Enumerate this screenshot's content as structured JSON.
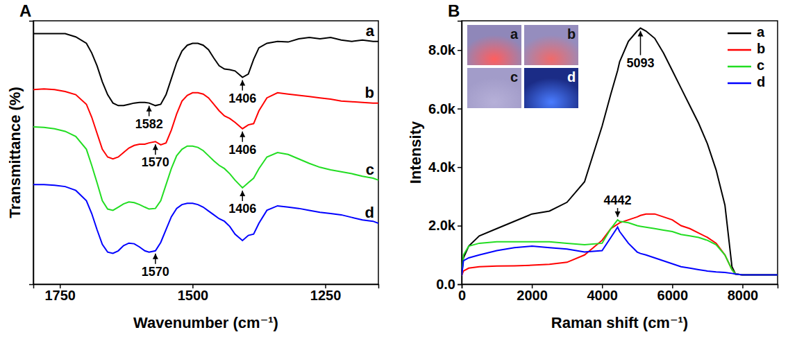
{
  "chart_data": [
    {
      "type": "line",
      "panel_label": "A",
      "x_label": "Wavenumber (cm⁻¹)",
      "y_label": "Transmittance (%)",
      "x": [
        1800,
        1780,
        1760,
        1740,
        1720,
        1700,
        1690,
        1680,
        1670,
        1660,
        1650,
        1640,
        1630,
        1620,
        1610,
        1600,
        1590,
        1582,
        1570,
        1560,
        1550,
        1540,
        1530,
        1520,
        1510,
        1500,
        1490,
        1480,
        1470,
        1460,
        1450,
        1440,
        1430,
        1420,
        1406,
        1395,
        1385,
        1375,
        1360,
        1340,
        1320,
        1300,
        1280,
        1260,
        1240,
        1220,
        1200,
        1180,
        1160,
        1150
      ],
      "xlim": [
        1800,
        1150
      ],
      "xticks": [
        1750,
        1500,
        1250
      ],
      "ylim": [
        0,
        410
      ],
      "tick_labels": "x",
      "series": [
        {
          "name": "a",
          "color": "#000000",
          "values": [
            390,
            390,
            390,
            390,
            385,
            375,
            360,
            340,
            315,
            295,
            282,
            278,
            278,
            280,
            282,
            283,
            283,
            282,
            278,
            280,
            295,
            320,
            345,
            363,
            372,
            375,
            375,
            372,
            365,
            352,
            340,
            335,
            334,
            332,
            322,
            327,
            350,
            368,
            375,
            378,
            377,
            382,
            384,
            382,
            384,
            380,
            378,
            380,
            378,
            378
          ],
          "annotations": [
            {
              "text": "1582",
              "x": 1582
            },
            {
              "text": "1406",
              "x": 1406
            }
          ]
        },
        {
          "name": "b",
          "color": "#ff0000",
          "values": [
            303,
            304,
            303,
            300,
            295,
            280,
            260,
            235,
            210,
            198,
            195,
            198,
            205,
            212,
            216,
            218,
            218,
            220,
            222,
            217,
            220,
            240,
            265,
            285,
            294,
            298,
            298,
            296,
            290,
            280,
            270,
            262,
            258,
            252,
            242,
            248,
            250,
            270,
            290,
            298,
            296,
            294,
            292,
            290,
            288,
            285,
            284,
            283,
            282,
            282
          ],
          "annotations": [
            {
              "text": "1570",
              "x": 1570
            },
            {
              "text": "1406",
              "x": 1406
            }
          ]
        },
        {
          "name": "c",
          "color": "#22dd22",
          "values": [
            245,
            244,
            242,
            238,
            230,
            210,
            185,
            158,
            130,
            117,
            115,
            120,
            125,
            128,
            127,
            124,
            120,
            117,
            118,
            130,
            155,
            180,
            200,
            210,
            215,
            215,
            213,
            208,
            200,
            192,
            185,
            180,
            172,
            162,
            150,
            158,
            165,
            180,
            198,
            205,
            202,
            195,
            188,
            182,
            178,
            175,
            172,
            168,
            165,
            162
          ],
          "annotations": [
            {
              "text": "1406",
              "x": 1406
            }
          ]
        },
        {
          "name": "d",
          "color": "#0000ff",
          "values": [
            155,
            155,
            154,
            152,
            146,
            130,
            110,
            85,
            62,
            50,
            48,
            52,
            60,
            64,
            63,
            58,
            52,
            50,
            52,
            65,
            85,
            105,
            118,
            124,
            126,
            126,
            124,
            120,
            114,
            108,
            102,
            98,
            90,
            78,
            68,
            76,
            78,
            95,
            115,
            122,
            120,
            118,
            115,
            112,
            110,
            108,
            104,
            100,
            98,
            95
          ],
          "annotations": [
            {
              "text": "1570",
              "x": 1570
            }
          ]
        }
      ]
    },
    {
      "type": "line",
      "panel_label": "B",
      "x_label": "Raman shift (cm⁻¹)",
      "y_label": "Intensity",
      "x": [
        0,
        50,
        200,
        500,
        1000,
        1500,
        2000,
        2500,
        3000,
        3500,
        4000,
        4250,
        4442,
        4500,
        4750,
        5000,
        5093,
        5250,
        5500,
        5750,
        6000,
        6250,
        6500,
        6750,
        7000,
        7250,
        7500,
        7700,
        7800,
        8000,
        8500,
        9000
      ],
      "xlim": [
        0,
        9000
      ],
      "xticks": [
        0,
        2000,
        4000,
        6000,
        8000
      ],
      "ylim": [
        0,
        9000
      ],
      "yticks": [
        {
          "value": 0,
          "label": "0.0"
        },
        {
          "value": 2000,
          "label": "2.0k"
        },
        {
          "value": 4000,
          "label": "4.0k"
        },
        {
          "value": 6000,
          "label": "6.0k"
        },
        {
          "value": 8000,
          "label": "8.0k"
        }
      ],
      "legend": "top-right",
      "inset_labels": [
        "a",
        "b",
        "c",
        "d"
      ],
      "series": [
        {
          "name": "a",
          "color": "#000000",
          "values": [
            300,
            900,
            1300,
            1650,
            1900,
            2150,
            2400,
            2500,
            2800,
            3500,
            5400,
            6500,
            7300,
            7600,
            8300,
            8650,
            8750,
            8650,
            8400,
            7900,
            7300,
            6700,
            6100,
            5500,
            4800,
            3900,
            2700,
            600,
            350,
            320,
            320,
            320
          ],
          "annotations": [
            {
              "text": "5093",
              "x": 5093
            }
          ]
        },
        {
          "name": "b",
          "color": "#ff0000",
          "values": [
            300,
            450,
            550,
            600,
            620,
            630,
            650,
            680,
            750,
            1000,
            1500,
            1900,
            2050,
            2100,
            2200,
            2300,
            2350,
            2400,
            2400,
            2300,
            2200,
            2000,
            1900,
            1750,
            1600,
            1400,
            1000,
            500,
            350,
            320,
            320,
            320
          ]
        },
        {
          "name": "c",
          "color": "#22dd22",
          "values": [
            300,
            1000,
            1300,
            1400,
            1450,
            1450,
            1450,
            1450,
            1400,
            1350,
            1400,
            1900,
            2200,
            2150,
            2100,
            2000,
            1980,
            1950,
            1900,
            1850,
            1800,
            1700,
            1650,
            1600,
            1500,
            1350,
            1000,
            500,
            350,
            320,
            320,
            320
          ],
          "annotations": [
            {
              "text": "4442",
              "x": 4442
            }
          ]
        },
        {
          "name": "d",
          "color": "#0000ff",
          "values": [
            300,
            800,
            900,
            1000,
            1150,
            1250,
            1300,
            1250,
            1200,
            1100,
            1150,
            1600,
            1950,
            1800,
            1400,
            1100,
            1050,
            1000,
            900,
            800,
            700,
            600,
            550,
            500,
            450,
            420,
            400,
            370,
            350,
            320,
            320,
            320
          ]
        }
      ]
    }
  ]
}
